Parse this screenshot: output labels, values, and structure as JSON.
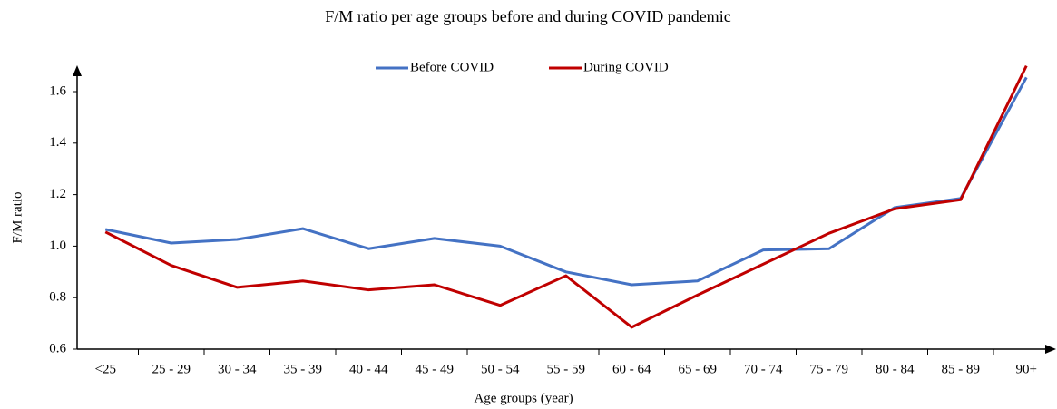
{
  "chart_data": {
    "type": "line",
    "title": "F/M ratio per age groups before and during COVID pandemic",
    "x_label": "Age groups (year)",
    "y_label": "F/M ratio",
    "categories": [
      "<25",
      "25 - 29",
      "30 - 34",
      "35 - 39",
      "40 - 44",
      "45 - 49",
      "50 - 54",
      "55 - 59",
      "60 - 64",
      "65 - 69",
      "70 - 74",
      "75 - 79",
      "80 - 84",
      "85 - 89",
      "90+"
    ],
    "series": [
      {
        "name": "Before COVID",
        "color": "#4472c4",
        "values": [
          1.065,
          1.012,
          1.026,
          1.068,
          0.99,
          1.03,
          1.0,
          0.9,
          0.85,
          0.865,
          0.985,
          0.99,
          1.15,
          1.185,
          1.655
        ]
      },
      {
        "name": "During COVID",
        "color": "#c00000",
        "values": [
          1.055,
          0.925,
          0.84,
          0.865,
          0.83,
          0.85,
          0.77,
          0.885,
          0.685,
          0.81,
          0.93,
          1.05,
          1.145,
          1.18,
          1.7
        ]
      }
    ],
    "ylim": [
      0.6,
      1.7
    ],
    "yticks": [
      {
        "value": 0.6,
        "label": "0.6"
      },
      {
        "value": 0.8,
        "label": "0.8"
      },
      {
        "value": 1.0,
        "label": "1.0"
      },
      {
        "value": 1.2,
        "label": "1.2"
      },
      {
        "value": 1.4,
        "label": "1.4"
      },
      {
        "value": 1.6,
        "label": "1.6"
      }
    ],
    "grid": false,
    "legend": "top"
  }
}
